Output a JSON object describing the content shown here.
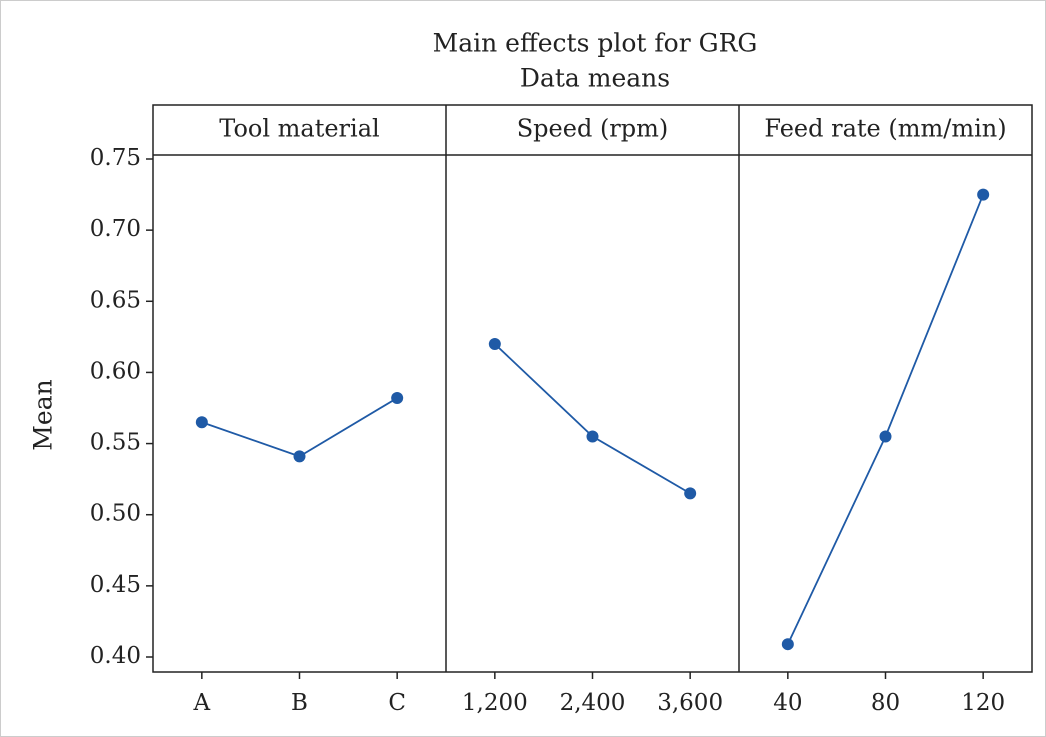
{
  "title": "Main effects plot for GRG",
  "subtitle": "Data means",
  "y_label": "Mean",
  "chart_data": [
    {
      "type": "line",
      "title": "Tool material",
      "categories": [
        "A",
        "B",
        "C"
      ],
      "values": [
        0.565,
        0.541,
        0.582
      ],
      "color": "#1f5aa6",
      "ylim": [
        0.39,
        0.75
      ],
      "yticks": [
        {
          "value": 0.4,
          "label": "0.40"
        },
        0.45,
        {
          "value": 0.5,
          "label": "0.50"
        },
        0.55,
        {
          "value": 0.6,
          "label": "0.60"
        },
        0.65,
        {
          "value": 0.7,
          "label": "0.70"
        },
        0.75
      ]
    },
    {
      "type": "line",
      "title": "Speed (rpm)",
      "categories": [
        "1,200",
        "2,400",
        "3,600"
      ],
      "values": [
        0.62,
        0.555,
        0.515
      ],
      "color": "#1f5aa6"
    },
    {
      "type": "line",
      "title": "Feed rate (mm/min)",
      "categories": [
        "40",
        "80",
        "120"
      ],
      "values": [
        0.409,
        0.555,
        0.725
      ],
      "color": "#1f5aa6"
    }
  ]
}
